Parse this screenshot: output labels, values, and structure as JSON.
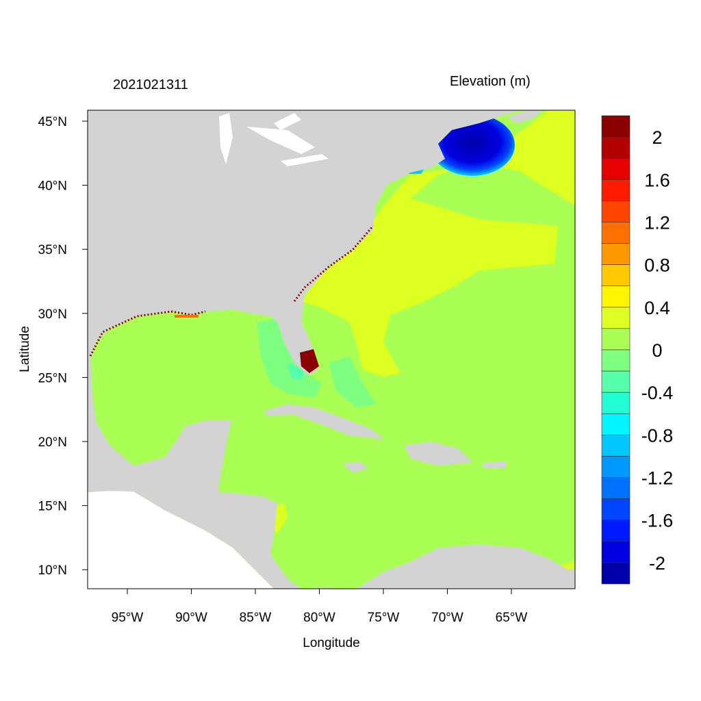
{
  "header": {
    "timestamp": "2021021311",
    "variable": "Elevation (m)"
  },
  "chart_data": {
    "type": "heatmap",
    "title": "2021021311",
    "xlabel": "Longitude",
    "ylabel": "Latitude",
    "x_ticks": [
      "95°W",
      "90°W",
      "85°W",
      "80°W",
      "75°W",
      "70°W",
      "65°W"
    ],
    "y_ticks": [
      "45°N",
      "40°N",
      "35°N",
      "30°N",
      "25°N",
      "20°N",
      "15°N",
      "10°N"
    ],
    "xlim": [
      -98,
      -60
    ],
    "ylim": [
      8.5,
      45.8
    ],
    "colorbar": {
      "label": "Elevation (m)",
      "tick_labels": [
        "2",
        "1.6",
        "1.2",
        "0.8",
        "0.4",
        "0",
        "-0.4",
        "-0.8",
        "-1.2",
        "-1.6",
        "-2"
      ],
      "colors": [
        "#8B0000",
        "#B40000",
        "#E60000",
        "#FF1A00",
        "#FF4500",
        "#FF7000",
        "#FF9900",
        "#FFC800",
        "#FFF500",
        "#DDFF22",
        "#AAFF55",
        "#7FFF7F",
        "#55FFAA",
        "#22FFD5",
        "#00F5FF",
        "#00C8FF",
        "#0099FF",
        "#0070FF",
        "#0045FF",
        "#001AFF",
        "#0000E0",
        "#0000AA"
      ]
    },
    "land_color": "#D3D3D3",
    "background_ocean_value_range": [
      0,
      0.2
    ]
  }
}
